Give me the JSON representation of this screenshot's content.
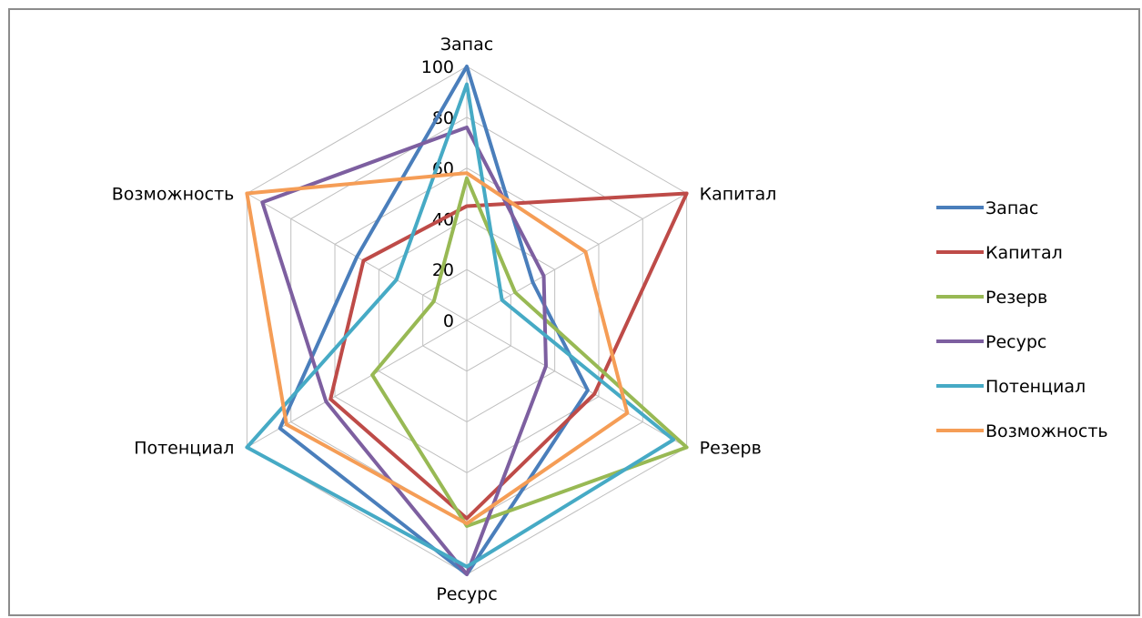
{
  "chart_data": {
    "type": "radar",
    "categories": [
      "Запас",
      "Капитал",
      "Резерв",
      "Ресурс",
      "Потенциал",
      "Возможность"
    ],
    "radial_ticks": [
      "0",
      "20",
      "40",
      "60",
      "80",
      "100"
    ],
    "rlim": [
      0,
      100
    ],
    "grid": true,
    "legend_position": "right",
    "series": [
      {
        "name": "Запас",
        "color": "#4a7ebb",
        "values": [
          100,
          30,
          55,
          100,
          85,
          50
        ]
      },
      {
        "name": "Капитал",
        "color": "#be4b48",
        "values": [
          45,
          100,
          58,
          78,
          62,
          47
        ]
      },
      {
        "name": "Резерв",
        "color": "#98b954",
        "values": [
          56,
          22,
          100,
          81,
          43,
          15
        ]
      },
      {
        "name": "Ресурс",
        "color": "#7d5fa0",
        "values": [
          76,
          35,
          36,
          100,
          64,
          93
        ]
      },
      {
        "name": "Потенциал",
        "color": "#46aac5",
        "values": [
          93,
          16,
          94,
          97,
          100,
          32
        ]
      },
      {
        "name": "Возможность",
        "color": "#f59d56",
        "values": [
          58,
          54,
          73,
          80,
          82,
          100
        ]
      }
    ]
  }
}
